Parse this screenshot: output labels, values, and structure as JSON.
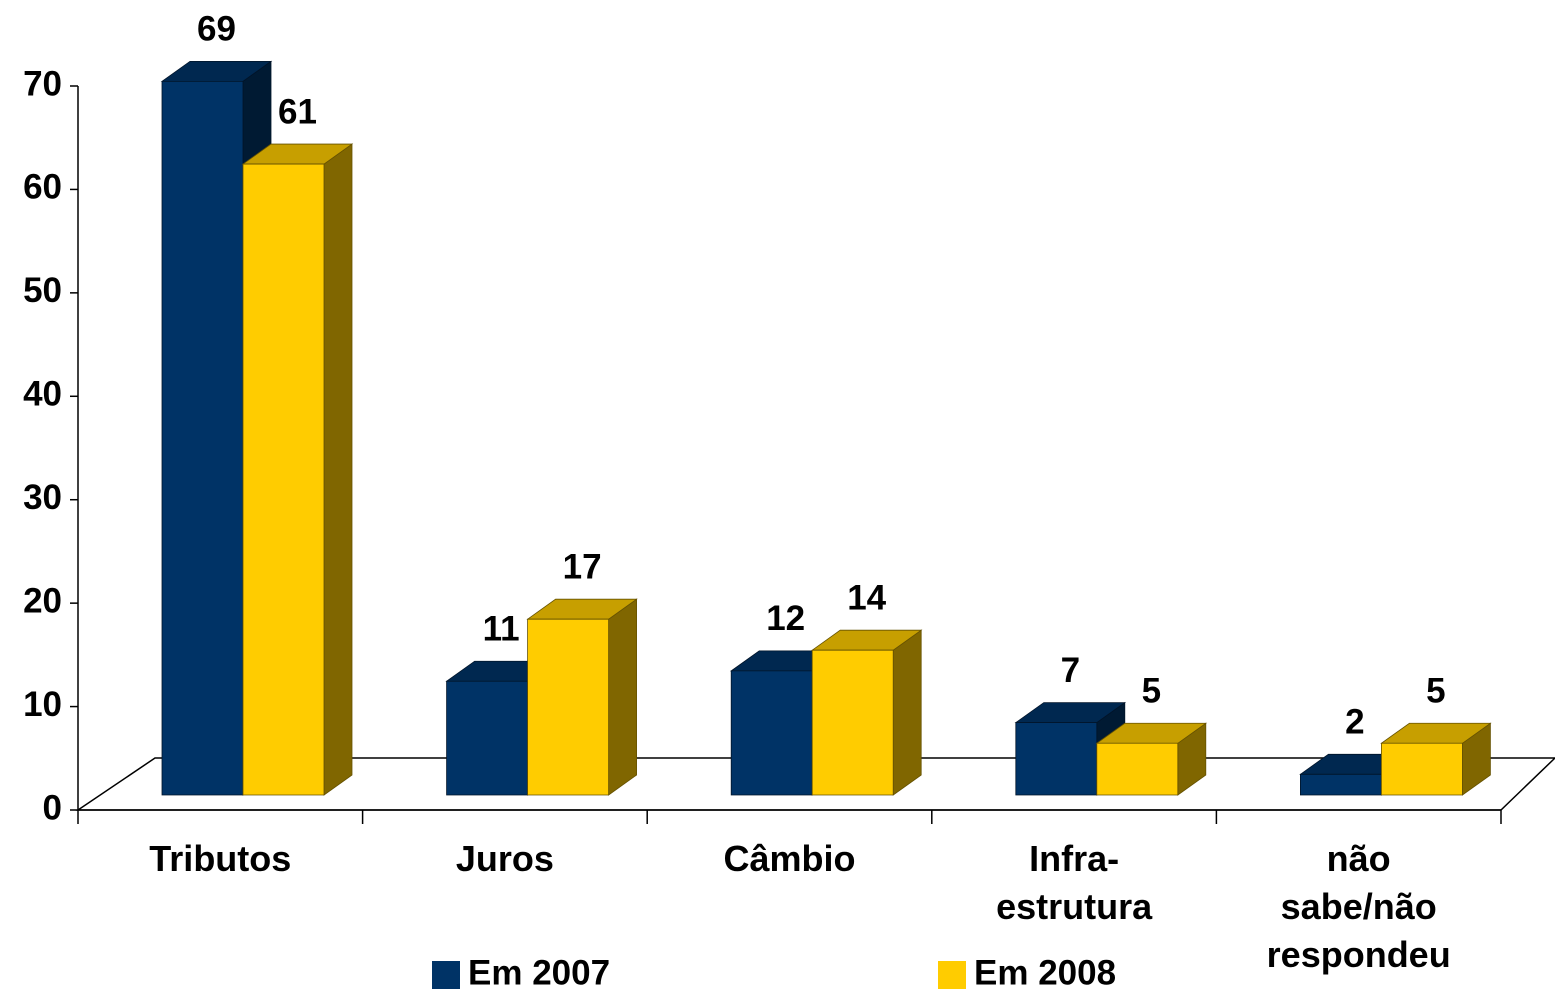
{
  "chart_data": {
    "type": "bar3d",
    "categories": [
      "Tributos",
      "Juros",
      "Câmbio",
      "Infra-estrutura",
      "não sabe/não respondeu"
    ],
    "series": [
      {
        "name": "Em 2007",
        "color": "#003366",
        "values": [
          69,
          11,
          12,
          7,
          2
        ]
      },
      {
        "name": "Em 2008",
        "color": "#ffcc00",
        "values": [
          61,
          17,
          14,
          5,
          5
        ]
      }
    ],
    "ylim": [
      0,
      70
    ],
    "yticks": [
      0,
      10,
      20,
      30,
      40,
      50,
      60,
      70
    ]
  }
}
